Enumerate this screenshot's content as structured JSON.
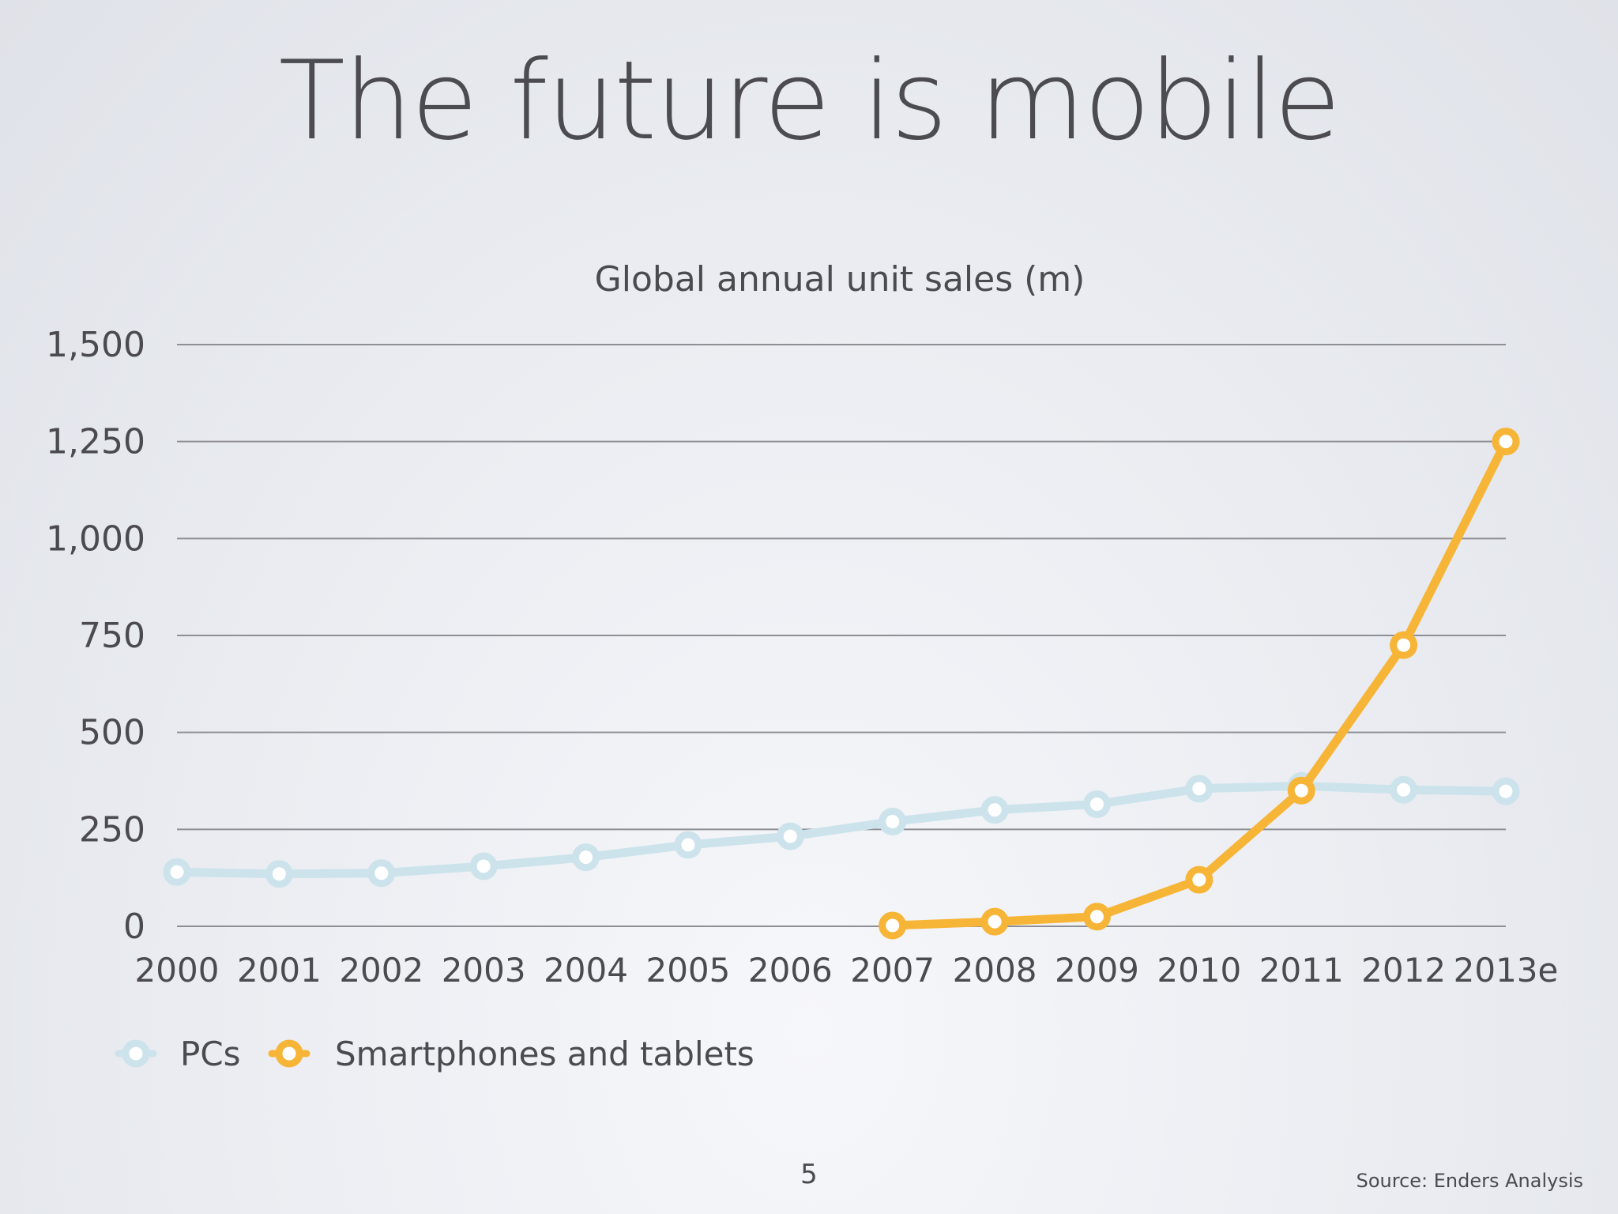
{
  "slide": {
    "title": "The future is mobile",
    "page_number": "5",
    "source": "Source: Enders Analysis"
  },
  "chart_data": {
    "type": "line",
    "title": "Global annual unit sales (m)",
    "xlabel": "",
    "ylabel": "",
    "categories": [
      "2000",
      "2001",
      "2002",
      "2003",
      "2004",
      "2005",
      "2006",
      "2007",
      "2008",
      "2009",
      "2010",
      "2011",
      "2012",
      "2013e"
    ],
    "ylim": [
      0,
      1500
    ],
    "yticks": [
      0,
      250,
      500,
      750,
      1000,
      1250,
      1500
    ],
    "ytick_labels": [
      "0",
      "250",
      "500",
      "750",
      "1,000",
      "1,250",
      "1,500"
    ],
    "grid": true,
    "legend_position": "bottom-left",
    "series": [
      {
        "name": "PCs",
        "color": "#cde3ec",
        "values": [
          140,
          135,
          137,
          155,
          178,
          210,
          232,
          270,
          300,
          315,
          355,
          362,
          352,
          348
        ]
      },
      {
        "name": "Smartphones and tablets",
        "color": "#f7b538",
        "values": [
          null,
          null,
          null,
          null,
          null,
          null,
          null,
          2,
          12,
          25,
          120,
          350,
          725,
          1250
        ]
      }
    ]
  }
}
